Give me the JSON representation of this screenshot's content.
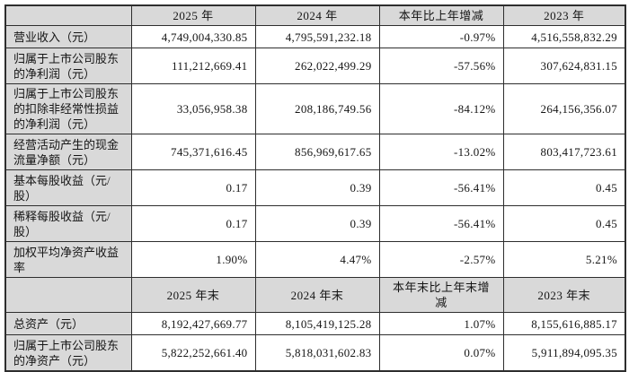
{
  "colors": {
    "header_bg": "#d9d9d9",
    "label_bg": "#d9d9d9",
    "border": "#2e2e2e",
    "text": "#151515"
  },
  "table": {
    "period_header": {
      "c0": "",
      "c1": "2025 年",
      "c2": "2024 年",
      "c3": "本年比上年增减",
      "c4": "2023 年"
    },
    "period_rows": [
      {
        "label": "营业收入（元）",
        "y2025": "4,749,004,330.85",
        "y2024": "4,795,591,232.18",
        "change": "-0.97%",
        "y2023": "4,516,558,832.29"
      },
      {
        "label": "归属于上市公司股东\n的净利润（元）",
        "y2025": "111,212,669.41",
        "y2024": "262,022,499.29",
        "change": "-57.56%",
        "y2023": "307,624,831.15"
      },
      {
        "label": "归属于上市公司股东\n的扣除非经常性损益\n的净利润（元）",
        "y2025": "33,056,958.38",
        "y2024": "208,186,749.56",
        "change": "-84.12%",
        "y2023": "264,156,356.07"
      },
      {
        "label": "经营活动产生的现金\n流量净额（元）",
        "y2025": "745,371,616.45",
        "y2024": "856,969,617.65",
        "change": "-13.02%",
        "y2023": "803,417,723.61"
      },
      {
        "label": "基本每股收益（元/\n股）",
        "y2025": "0.17",
        "y2024": "0.39",
        "change": "-56.41%",
        "y2023": "0.45"
      },
      {
        "label": "稀释每股收益（元/\n股）",
        "y2025": "0.17",
        "y2024": "0.39",
        "change": "-56.41%",
        "y2023": "0.45"
      },
      {
        "label": "加权平均净资产收益\n率",
        "y2025": "1.90%",
        "y2024": "4.47%",
        "change": "-2.57%",
        "y2023": "5.21%"
      }
    ],
    "endpoint_header": {
      "c0": "",
      "c1": "2025 年末",
      "c2": "2024 年末",
      "c3": "本年末比上年末增减",
      "c4": "2023 年末"
    },
    "endpoint_rows": [
      {
        "label": "总资产（元）",
        "y2025": "8,192,427,669.77",
        "y2024": "8,105,419,125.28",
        "change": "1.07%",
        "y2023": "8,155,616,885.17"
      },
      {
        "label": "归属于上市公司股东\n的净资产（元）",
        "y2025": "5,822,252,661.40",
        "y2024": "5,818,031,602.83",
        "change": "0.07%",
        "y2023": "5,911,894,095.35"
      }
    ]
  }
}
